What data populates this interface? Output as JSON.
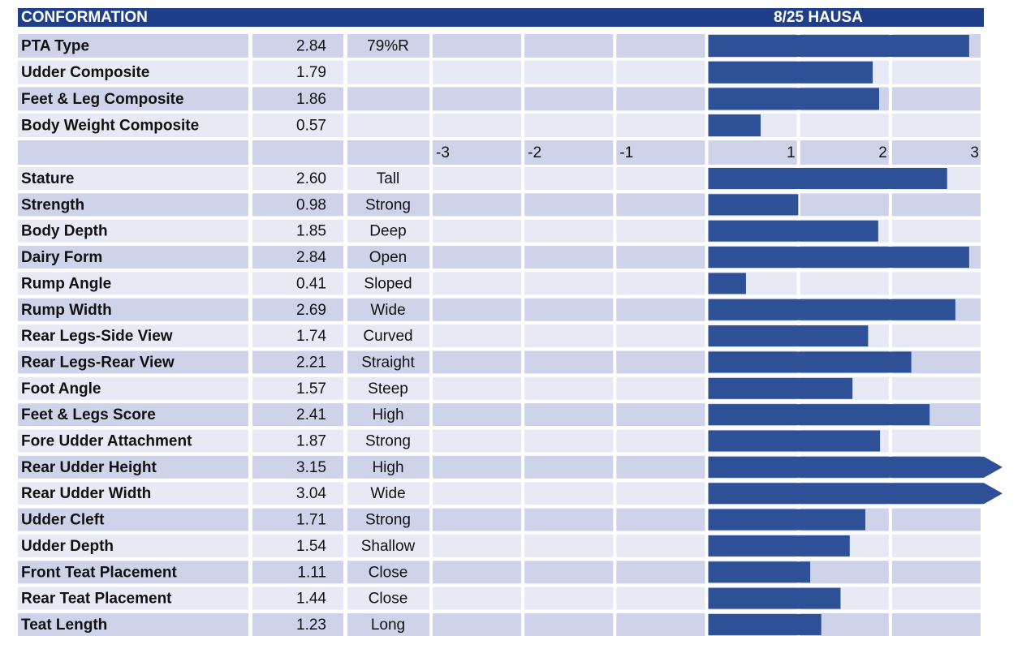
{
  "chart_data": [
    {
      "type": "bar",
      "orientation": "horizontal",
      "title": "CONFORMATION",
      "subtitle": "8/25 HAUSA",
      "categories": [
        "PTA Type",
        "Udder Composite",
        "Feet & Leg Composite",
        "Body Weight Composite"
      ],
      "values": [
        2.84,
        1.79,
        1.86,
        0.57
      ],
      "descriptors": [
        "79%R",
        null,
        null,
        null
      ],
      "color": "#2e5096",
      "xlim": [
        -3,
        3
      ]
    },
    {
      "type": "bar",
      "orientation": "horizontal",
      "categories": [
        "Stature",
        "Strength",
        "Body Depth",
        "Dairy Form",
        "Rump Angle",
        "Rump Width",
        "Rear Legs-Side View",
        "Rear Legs-Rear View",
        "Foot Angle",
        "Feet & Legs Score",
        "Fore Udder Attachment",
        "Rear Udder Height",
        "Rear Udder Width",
        "Udder Cleft",
        "Udder Depth",
        "Front Teat Placement",
        "Rear Teat Placement",
        "Teat Length"
      ],
      "values": [
        2.6,
        0.98,
        1.85,
        2.84,
        0.41,
        2.69,
        1.74,
        2.21,
        1.57,
        2.41,
        1.87,
        3.15,
        3.04,
        1.71,
        1.54,
        1.11,
        1.44,
        1.23
      ],
      "value_labels": [
        "2.60",
        "0.98",
        "1.85",
        "2.84",
        "0.41",
        "2.69",
        "1.74",
        "2.21",
        "1.57",
        "2.41",
        "1.87",
        "3.15",
        "3.04",
        "1.71",
        "1.54",
        "1.11",
        "1.44",
        "1.23"
      ],
      "descriptors": [
        "Tall",
        "Strong",
        "Deep",
        "Open",
        "Sloped",
        "Wide",
        "Curved",
        "Straight",
        "Steep",
        "High",
        "Strong",
        "High",
        "Wide",
        "Strong",
        "Shallow",
        "Close",
        "Close",
        "Long"
      ],
      "color": "#2e5096",
      "xlim": [
        -3,
        3
      ],
      "xticks": [
        -3,
        -2,
        -1,
        1,
        2,
        3
      ]
    }
  ]
}
